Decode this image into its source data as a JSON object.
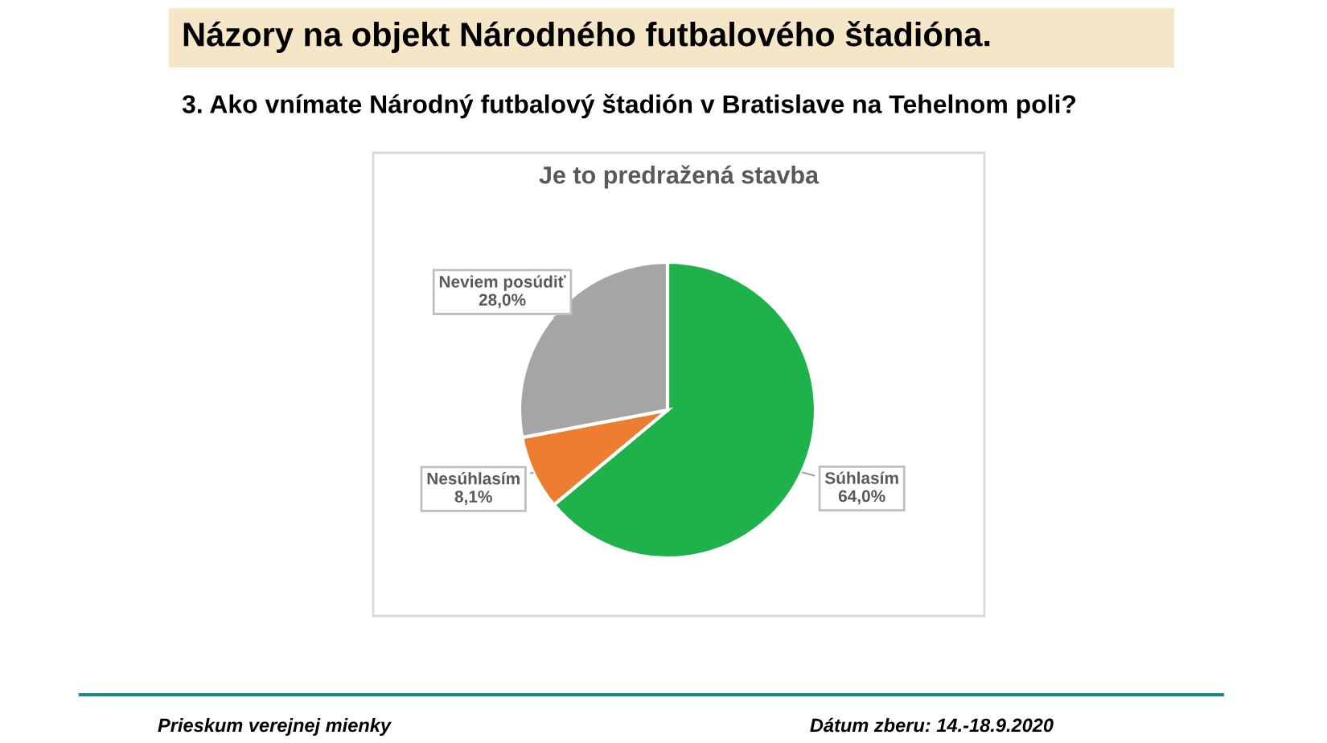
{
  "chart_data": {
    "type": "pie",
    "title": "Názory na objekt Národného futbalového štadióna.",
    "subtitle": "3. Ako vnímate Národný futbalový štadión v Bratislave na Tehelnom poli?",
    "annotations": [
      "Je to predražená stavba",
      "Prieskum verejnej mienky",
      "Dátum zberu: 14.-18.9.2020"
    ],
    "categories": [
      "Súhlasím",
      "Nesúhlasím",
      "Neviem posúdiť"
    ],
    "values": [
      64.0,
      8.1,
      28.0
    ],
    "colors": [
      "#1fb24b",
      "#ed7d31",
      "#a5a5a5"
    ],
    "value_labels": [
      "64,0%",
      "8,1%",
      "28,0%"
    ]
  }
}
